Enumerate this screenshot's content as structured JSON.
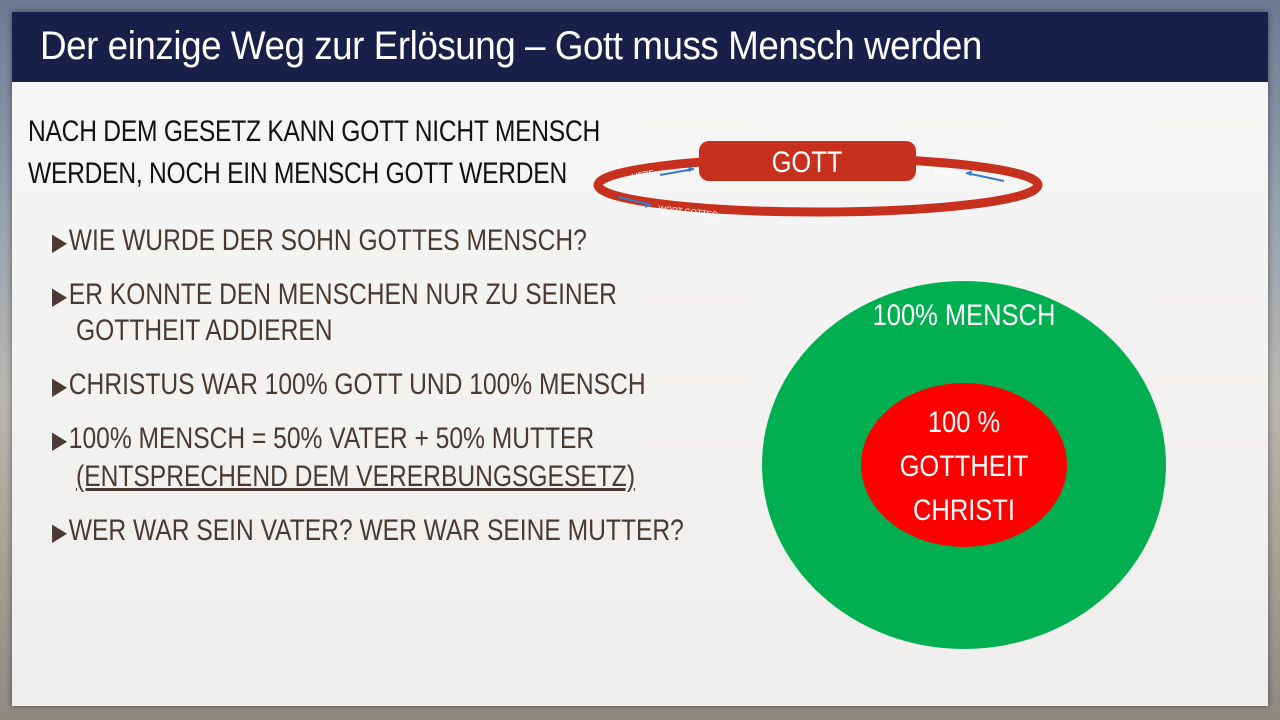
{
  "title": "Der einzige Weg zur Erlösung – Gott muss Mensch werden",
  "heading": {
    "line1": "NACH DEM GESETZ KANN GOTT NICHT MENSCH",
    "line2": "WERDEN, NOCH EIN MENSCH GOTT WERDEN"
  },
  "bullets": [
    {
      "text": "WIE WURDE DER SOHN GOTTES MENSCH?"
    },
    {
      "text": "ER KONNTE DEN MENSCHEN NUR ZU SEINER",
      "text2": "GOTTHEIT ADDIEREN"
    },
    {
      "text": "CHRISTUS WAR 100% GOTT UND 100% MENSCH"
    },
    {
      "text": "100% MENSCH = 50% VATER + 50% MUTTER",
      "text2": "(ENTSPRECHEND DEM VERERBUNGSGESETZ)"
    },
    {
      "text": "WER WAR SEIN VATER? WER WAR SEINE MUTTER?"
    }
  ],
  "bullet_marker": "▶",
  "cycle": {
    "center": "GOTT",
    "left": "LIEBE",
    "right": "FRUCHT",
    "bottom": "WORT GOTTES"
  },
  "circles": {
    "outer_label": "100% MENSCH",
    "inner_line1": "100 %",
    "inner_line2": "GOTTHEIT",
    "inner_line3": "CHRISTI"
  },
  "colors": {
    "title_bar": "#18204a",
    "ring": "#c8301e",
    "outer_circle": "#00b050",
    "inner_circle": "#ff0000"
  }
}
